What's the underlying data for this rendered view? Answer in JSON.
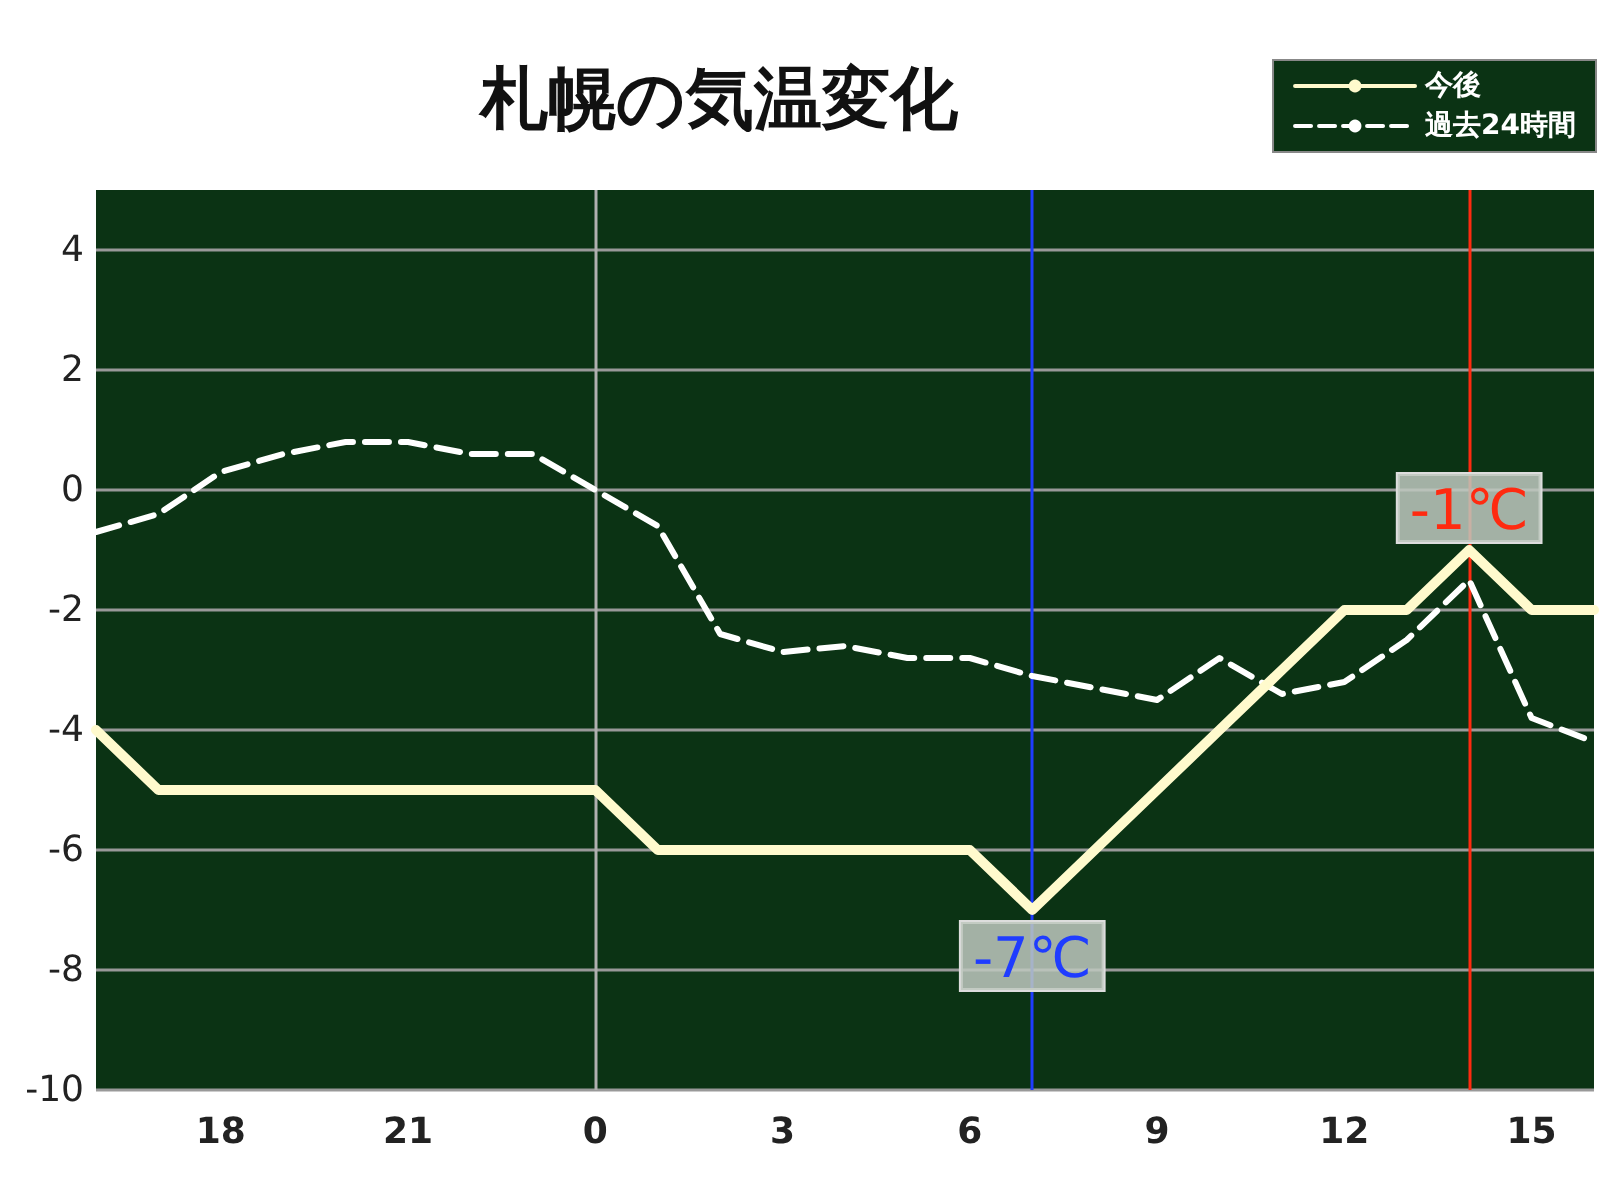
{
  "chart_data": {
    "type": "line",
    "title": "札幌の気温変化",
    "xlim": [
      "--01-01T16:00",
      "--01-02T16:00"
    ],
    "xticks": [
      {
        "value": "--01-01T18:00",
        "label": "18"
      },
      {
        "value": "--01-01T21:00",
        "label": "21"
      },
      {
        "value": "--01-02T00:00",
        "label": "0"
      },
      {
        "value": "--01-02T03:00",
        "label": "3"
      },
      {
        "value": "--01-02T06:00",
        "label": "6"
      },
      {
        "value": "--01-02T09:00",
        "label": "9"
      },
      {
        "value": "--01-02T12:00",
        "label": "12"
      },
      {
        "value": "--01-02T15:00",
        "label": "15"
      }
    ],
    "x": [
      "--01-01T16:00",
      "--01-01T17:00",
      "--01-01T18:00",
      "--01-01T19:00",
      "--01-01T20:00",
      "--01-01T21:00",
      "--01-01T22:00",
      "--01-01T23:00",
      "--01-02T00:00",
      "--01-02T01:00",
      "--01-02T02:00",
      "--01-02T03:00",
      "--01-02T04:00",
      "--01-02T05:00",
      "--01-02T06:00",
      "--01-02T07:00",
      "--01-02T08:00",
      "--01-02T09:00",
      "--01-02T10:00",
      "--01-02T11:00",
      "--01-02T12:00",
      "--01-02T13:00",
      "--01-02T14:00",
      "--01-02T15:00",
      "--01-02T16:00"
    ],
    "ylim": [
      -10,
      5
    ],
    "yticks": [
      -10,
      -8,
      -6,
      -4,
      -2,
      0,
      2,
      4
    ],
    "grid": "y",
    "legend": "top right",
    "marker": "none",
    "series": [
      {
        "name": "今後",
        "color": "#fffacd",
        "line_style": "solid",
        "values": [
          -4,
          -5,
          -5,
          -5,
          -5,
          -5,
          -5,
          -5,
          -5,
          -6,
          -6,
          -6,
          -6,
          -6,
          -6,
          -7,
          -6,
          -5,
          -4,
          -3,
          -2,
          -2,
          -1,
          -2,
          -2
        ]
      },
      {
        "name": "過去24時間",
        "color": "#ffffff",
        "line_style": "dashed",
        "values": [
          -0.7,
          -0.4,
          0.3,
          0.6,
          0.8,
          0.8,
          0.6,
          0.6,
          0,
          -0.6,
          -2.4,
          -2.7,
          -2.6,
          -2.8,
          -2.8,
          -3.1,
          -3.3,
          -3.5,
          -2.8,
          -3.4,
          -3.2,
          -2.5,
          -1.5,
          -3.8,
          -4.2
        ]
      }
    ],
    "ref_lines": [
      {
        "axis": "x",
        "value": "--01-02T00:00",
        "color": "#b0b0b0"
      },
      {
        "axis": "x",
        "value": "--01-02T07:00",
        "color": "#1f3cff"
      },
      {
        "axis": "x",
        "value": "--01-02T14:00",
        "color": "#ff2a10"
      }
    ],
    "annotations": [
      {
        "text": "-7℃",
        "x": "--01-02T07:00",
        "y": -7
      },
      {
        "text": "-1℃",
        "x": "--01-02T14:00",
        "y": -1
      }
    ]
  }
}
